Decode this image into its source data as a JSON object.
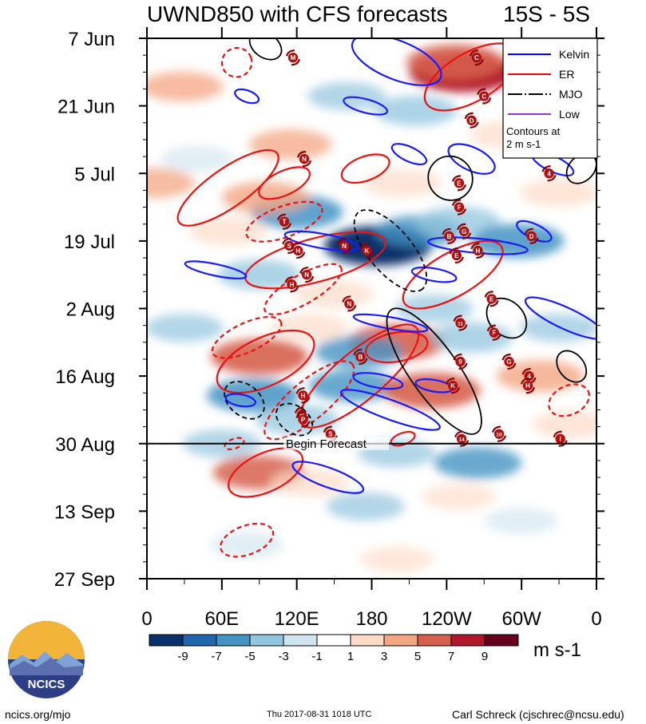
{
  "title": {
    "main": "UWND850 with CFS forecasts",
    "lat_band": "15S - 5S"
  },
  "chart_data": {
    "type": "heatmap",
    "title": "UWND850 with CFS forecasts",
    "subtitle": "15S - 5S",
    "x_ticks": [
      {
        "label": "0",
        "lon": 0
      },
      {
        "label": "60E",
        "lon": 60
      },
      {
        "label": "120E",
        "lon": 120
      },
      {
        "label": "180",
        "lon": 180
      },
      {
        "label": "120W",
        "lon": 240
      },
      {
        "label": "60W",
        "lon": 300
      },
      {
        "label": "0",
        "lon": 360
      }
    ],
    "y_ticks": [
      {
        "label": "7 Jun",
        "day": 0
      },
      {
        "label": "21 Jun",
        "day": 14
      },
      {
        "label": "5 Jul",
        "day": 28
      },
      {
        "label": "19 Jul",
        "day": 42
      },
      {
        "label": "2 Aug",
        "day": 56
      },
      {
        "label": "16 Aug",
        "day": 70
      },
      {
        "label": "30 Aug",
        "day": 84
      },
      {
        "label": "13 Sep",
        "day": 98
      },
      {
        "label": "27 Sep",
        "day": 112
      }
    ],
    "xlim": [
      0,
      360
    ],
    "ylim": [
      0,
      112
    ],
    "forecast_start_day": 84,
    "forecast_label": "Begin Forecast",
    "colorbar": {
      "levels": [
        -9,
        -7,
        -5,
        -3,
        -1,
        1,
        3,
        5,
        7,
        9
      ],
      "labels": [
        "-9",
        "-7",
        "-5",
        "-3",
        "-1",
        "1",
        "3",
        "5",
        "7",
        "9"
      ],
      "colors": [
        "#08306b",
        "#2166ac",
        "#4393c3",
        "#92c5de",
        "#d1e5f0",
        "#ffffff",
        "#fddbc7",
        "#f4a582",
        "#d6604d",
        "#b2182b",
        "#67001f"
      ],
      "units": "m s-1"
    },
    "legend": {
      "placement": "top-right",
      "entries": [
        {
          "name": "Kelvin",
          "color": "#0000ff"
        },
        {
          "name": "ER",
          "color": "#ff0000"
        },
        {
          "name": "MJO",
          "color": "#000000"
        },
        {
          "name": "Low",
          "color": "#9932cc"
        }
      ],
      "note": "Contours at 2 m s-1"
    },
    "anomaly_blobs": [
      {
        "lon": 253,
        "day": 7,
        "v": 9
      },
      {
        "lon": 247,
        "day": 5,
        "v": 7
      },
      {
        "lon": 28,
        "day": 10,
        "v": 4
      },
      {
        "lon": 160,
        "day": 12,
        "v": -3
      },
      {
        "lon": 215,
        "day": 15,
        "v": -4
      },
      {
        "lon": 290,
        "day": 20,
        "v": 3
      },
      {
        "lon": 115,
        "day": 22,
        "v": 4
      },
      {
        "lon": 205,
        "day": 30,
        "v": 3
      },
      {
        "lon": 120,
        "day": 36,
        "v": -6
      },
      {
        "lon": 95,
        "day": 33,
        "v": 5
      },
      {
        "lon": 65,
        "day": 40,
        "v": 3
      },
      {
        "lon": 185,
        "day": 43,
        "v": -9
      },
      {
        "lon": 218,
        "day": 40,
        "v": -5
      },
      {
        "lon": 250,
        "day": 38,
        "v": -4
      },
      {
        "lon": 297,
        "day": 42,
        "v": -6
      },
      {
        "lon": 90,
        "day": 49,
        "v": -4
      },
      {
        "lon": 150,
        "day": 53,
        "v": 3
      },
      {
        "lon": 230,
        "day": 56,
        "v": -3
      },
      {
        "lon": 200,
        "day": 63,
        "v": 7
      },
      {
        "lon": 170,
        "day": 65,
        "v": -5
      },
      {
        "lon": 90,
        "day": 66,
        "v": 7
      },
      {
        "lon": 85,
        "day": 74,
        "v": -6
      },
      {
        "lon": 165,
        "day": 72,
        "v": -5
      },
      {
        "lon": 228,
        "day": 73,
        "v": 7
      },
      {
        "lon": 315,
        "day": 70,
        "v": 5
      },
      {
        "lon": 340,
        "day": 80,
        "v": 3
      },
      {
        "lon": 60,
        "day": 84,
        "v": -3
      },
      {
        "lon": 120,
        "day": 79,
        "v": -4
      },
      {
        "lon": 200,
        "day": 86,
        "v": -3
      },
      {
        "lon": 265,
        "day": 88,
        "v": -5
      },
      {
        "lon": 90,
        "day": 90,
        "v": 6
      },
      {
        "lon": 130,
        "day": 92,
        "v": 3
      },
      {
        "lon": 175,
        "day": 97,
        "v": -3
      },
      {
        "lon": 250,
        "day": 95,
        "v": 2
      },
      {
        "lon": 300,
        "day": 100,
        "v": -2
      },
      {
        "lon": 80,
        "day": 105,
        "v": -2
      },
      {
        "lon": 200,
        "day": 108,
        "v": 2
      },
      {
        "lon": 330,
        "day": 60,
        "v": -3
      },
      {
        "lon": 30,
        "day": 60,
        "v": -3
      },
      {
        "lon": 330,
        "day": 32,
        "v": 3
      },
      {
        "lon": 40,
        "day": 25,
        "v": -2
      },
      {
        "lon": 260,
        "day": 62,
        "v": -4
      },
      {
        "lon": 130,
        "day": 60,
        "v": 3
      },
      {
        "lon": 5,
        "day": 30,
        "v": 4
      }
    ],
    "kelvin_contours": [
      {
        "lon": 200,
        "day": 4.5,
        "rx": 38,
        "ry": 4,
        "rot": 22
      },
      {
        "lon": 308,
        "day": 4,
        "rx": 22,
        "ry": 2.2,
        "rot": 15
      },
      {
        "lon": 80,
        "day": 12,
        "rx": 10,
        "ry": 1.2,
        "rot": 20
      },
      {
        "lon": 175,
        "day": 14,
        "rx": 18,
        "ry": 1.4,
        "rot": 15
      },
      {
        "lon": 260,
        "day": 25,
        "rx": 20,
        "ry": 2.4,
        "rot": 25
      },
      {
        "lon": 325,
        "day": 26,
        "rx": 18,
        "ry": 1.6,
        "rot": 25
      },
      {
        "lon": 210,
        "day": 24,
        "rx": 15,
        "ry": 1.5,
        "rot": 25
      },
      {
        "lon": 140,
        "day": 42,
        "rx": 30,
        "ry": 1.5,
        "rot": 10
      },
      {
        "lon": 55,
        "day": 48,
        "rx": 25,
        "ry": 1.2,
        "rot": 12
      },
      {
        "lon": 265,
        "day": 43,
        "rx": 40,
        "ry": 1.5,
        "rot": 5
      },
      {
        "lon": 310,
        "day": 40,
        "rx": 15,
        "ry": 1.5,
        "rot": 25
      },
      {
        "lon": 230,
        "day": 49,
        "rx": 18,
        "ry": 1.3,
        "rot": 10
      },
      {
        "lon": 335,
        "day": 58,
        "rx": 35,
        "ry": 2.2,
        "rot": 25
      },
      {
        "lon": 195,
        "day": 59,
        "rx": 30,
        "ry": 1.2,
        "rot": 10
      },
      {
        "lon": 185,
        "day": 71,
        "rx": 20,
        "ry": 1.4,
        "rot": 10
      },
      {
        "lon": 230,
        "day": 72,
        "rx": 15,
        "ry": 1.2,
        "rot": 10
      },
      {
        "lon": 195,
        "day": 77,
        "rx": 42,
        "ry": 2,
        "rot": 20
      },
      {
        "lon": 75,
        "day": 75,
        "rx": 12,
        "ry": 1.2,
        "rot": 10
      },
      {
        "lon": 145,
        "day": 91,
        "rx": 30,
        "ry": 2,
        "rot": 20
      }
    ],
    "er_contours": [
      {
        "lon": 72,
        "day": 5,
        "rx": 12,
        "ry": 3,
        "rot": -20,
        "dash": true
      },
      {
        "lon": 260,
        "day": 8,
        "rx": 42,
        "ry": 5,
        "rot": -30,
        "dash": false
      },
      {
        "lon": 65,
        "day": 31,
        "rx": 48,
        "ry": 4,
        "rot": -35,
        "dash": false
      },
      {
        "lon": 110,
        "day": 30,
        "rx": 22,
        "ry": 2.5,
        "rot": -25,
        "dash": false
      },
      {
        "lon": 175,
        "day": 27,
        "rx": 20,
        "ry": 2.5,
        "rot": -20,
        "dash": false
      },
      {
        "lon": 110,
        "day": 38,
        "rx": 32,
        "ry": 3.2,
        "rot": -20,
        "dash": true
      },
      {
        "lon": 135,
        "day": 46,
        "rx": 58,
        "ry": 4.5,
        "rot": -15,
        "dash": false
      },
      {
        "lon": 125,
        "day": 52,
        "rx": 35,
        "ry": 3,
        "rot": -30,
        "dash": true
      },
      {
        "lon": 245,
        "day": 49,
        "rx": 45,
        "ry": 4.5,
        "rot": -30,
        "dash": false
      },
      {
        "lon": 95,
        "day": 67,
        "rx": 42,
        "ry": 5,
        "rot": -25,
        "dash": false
      },
      {
        "lon": 80,
        "day": 62,
        "rx": 30,
        "ry": 3,
        "rot": -25,
        "dash": true
      },
      {
        "lon": 170,
        "day": 70,
        "rx": 60,
        "ry": 5,
        "rot": -40,
        "dash": false
      },
      {
        "lon": 130,
        "day": 75,
        "rx": 45,
        "ry": 4,
        "rot": -40,
        "dash": true
      },
      {
        "lon": 200,
        "day": 64,
        "rx": 25,
        "ry": 3,
        "rot": -10,
        "dash": false
      },
      {
        "lon": 95,
        "day": 90,
        "rx": 32,
        "ry": 4,
        "rot": -25,
        "dash": false
      },
      {
        "lon": 80,
        "day": 104,
        "rx": 22,
        "ry": 3,
        "rot": -20,
        "dash": true
      },
      {
        "lon": 338,
        "day": 75,
        "rx": 17,
        "ry": 3,
        "rot": -25,
        "dash": true
      },
      {
        "lon": 205,
        "day": 83,
        "rx": 10,
        "ry": 1.2,
        "rot": -20,
        "dash": false
      },
      {
        "lon": 70,
        "day": 84,
        "rx": 8,
        "ry": 1,
        "rot": -20,
        "dash": true
      }
    ],
    "mjo_contours": [
      {
        "lon": 95,
        "day": 1.5,
        "rx": 14,
        "ry": 2.5,
        "rot": 35,
        "dash": false
      },
      {
        "lon": 243,
        "day": 29,
        "rx": 18,
        "ry": 4.5,
        "rot": 40,
        "dash": false
      },
      {
        "lon": 348,
        "day": 27,
        "rx": 10,
        "ry": 3.5,
        "rot": 45,
        "dash": false
      },
      {
        "lon": 195,
        "day": 44,
        "rx": 40,
        "ry": 4.5,
        "rot": 50,
        "dash": true
      },
      {
        "lon": 288,
        "day": 58,
        "rx": 18,
        "ry": 3.5,
        "rot": 45,
        "dash": false
      },
      {
        "lon": 340,
        "day": 68,
        "rx": 14,
        "ry": 2.6,
        "rot": 50,
        "dash": false
      },
      {
        "lon": 230,
        "day": 69,
        "rx": 60,
        "ry": 5,
        "rot": 55,
        "dash": false
      },
      {
        "lon": 78,
        "day": 75,
        "rx": 18,
        "ry": 3.2,
        "rot": 40,
        "dash": true
      },
      {
        "lon": 118,
        "day": 79,
        "rx": 16,
        "ry": 2.8,
        "rot": 35,
        "dash": true
      }
    ],
    "storms": [
      {
        "label": "M",
        "lon": 117,
        "day": 4
      },
      {
        "label": "C",
        "lon": 264,
        "day": 4
      },
      {
        "label": "C",
        "lon": 270,
        "day": 12
      },
      {
        "label": "D",
        "lon": 260,
        "day": 17
      },
      {
        "label": "N",
        "lon": 126,
        "day": 25
      },
      {
        "label": "E",
        "lon": 250,
        "day": 30
      },
      {
        "label": "4",
        "lon": 322,
        "day": 28
      },
      {
        "label": "F",
        "lon": 250,
        "day": 35
      },
      {
        "label": "T",
        "lon": 110,
        "day": 38
      },
      {
        "label": "B",
        "lon": 242,
        "day": 41
      },
      {
        "label": "G",
        "lon": 254,
        "day": 40
      },
      {
        "label": "D",
        "lon": 308,
        "day": 41
      },
      {
        "label": "S",
        "lon": 114,
        "day": 43
      },
      {
        "label": "H",
        "lon": 121,
        "day": 44
      },
      {
        "label": "N",
        "lon": 158,
        "day": 43
      },
      {
        "label": "K",
        "lon": 176,
        "day": 44
      },
      {
        "label": "E",
        "lon": 248,
        "day": 45
      },
      {
        "label": "H",
        "lon": 265,
        "day": 44
      },
      {
        "label": "N",
        "lon": 128,
        "day": 49
      },
      {
        "label": "H",
        "lon": 116,
        "day": 51
      },
      {
        "label": "N",
        "lon": 162,
        "day": 55
      },
      {
        "label": "E",
        "lon": 276,
        "day": 54
      },
      {
        "label": "11",
        "lon": 251,
        "day": 59
      },
      {
        "label": "F",
        "lon": 278,
        "day": 61
      },
      {
        "label": "B",
        "lon": 171,
        "day": 66
      },
      {
        "label": "9",
        "lon": 251,
        "day": 67
      },
      {
        "label": "G",
        "lon": 290,
        "day": 67
      },
      {
        "label": "4",
        "lon": 306,
        "day": 70
      },
      {
        "label": "K",
        "lon": 245,
        "day": 72
      },
      {
        "label": "H",
        "lon": 305,
        "day": 72
      },
      {
        "label": "H",
        "lon": 125,
        "day": 74
      },
      {
        "label": "H",
        "lon": 124,
        "day": 78
      },
      {
        "label": "P",
        "lon": 125,
        "day": 79
      },
      {
        "label": "S",
        "lon": 147,
        "day": 82
      },
      {
        "label": "14",
        "lon": 252,
        "day": 83
      },
      {
        "label": "10",
        "lon": 282,
        "day": 82
      },
      {
        "label": "I",
        "lon": 331,
        "day": 83
      }
    ]
  },
  "footer": {
    "site": "ncics.org/mjo",
    "timestamp": "Thu 2017-08-31 1018 UTC",
    "author": "Carl Schreck (cjschrec@ncsu.edu)",
    "logo_text": "NCICS"
  }
}
